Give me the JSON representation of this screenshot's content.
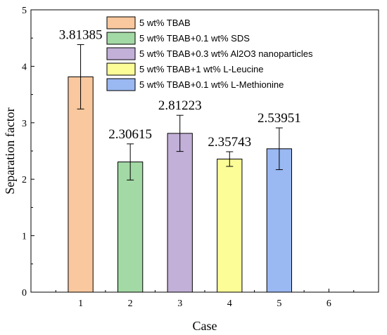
{
  "chart_data": {
    "type": "bar",
    "title": "",
    "xlabel": "Case",
    "ylabel": "Separation factor",
    "x_ticks": [
      "1",
      "2",
      "3",
      "4",
      "5",
      "6"
    ],
    "xlim": [
      0,
      7
    ],
    "ylim": [
      0,
      5
    ],
    "y_ticks": [
      "0",
      "1",
      "2",
      "3",
      "4",
      "5"
    ],
    "grid": false,
    "legend_position": "top-right",
    "series": [
      {
        "name": "5 wt% TBAB",
        "x": 1,
        "value": 3.81385,
        "label": "3.81385",
        "error": 0.57,
        "color": "#FAC89E"
      },
      {
        "name": "5 wt% TBAB+0.1 wt% SDS",
        "x": 2,
        "value": 2.30615,
        "label": "2.30615",
        "error": 0.32,
        "color": "#A3D9A5"
      },
      {
        "name": "5 wt% TBAB+0.3 wt% Al2O3 nanoparticles",
        "x": 3,
        "value": 2.81223,
        "label": "2.81223",
        "error": 0.32,
        "color": "#C2B0D8"
      },
      {
        "name": "5 wt% TBAB+1 wt% L-Leucine",
        "x": 4,
        "value": 2.35743,
        "label": "2.35743",
        "error": 0.13,
        "color": "#FDFD98"
      },
      {
        "name": "5 wt% TBAB+0.1 wt% L-Methionine",
        "x": 5,
        "value": 2.53951,
        "label": "2.53951",
        "error": 0.37,
        "color": "#9AB8F2"
      }
    ]
  }
}
